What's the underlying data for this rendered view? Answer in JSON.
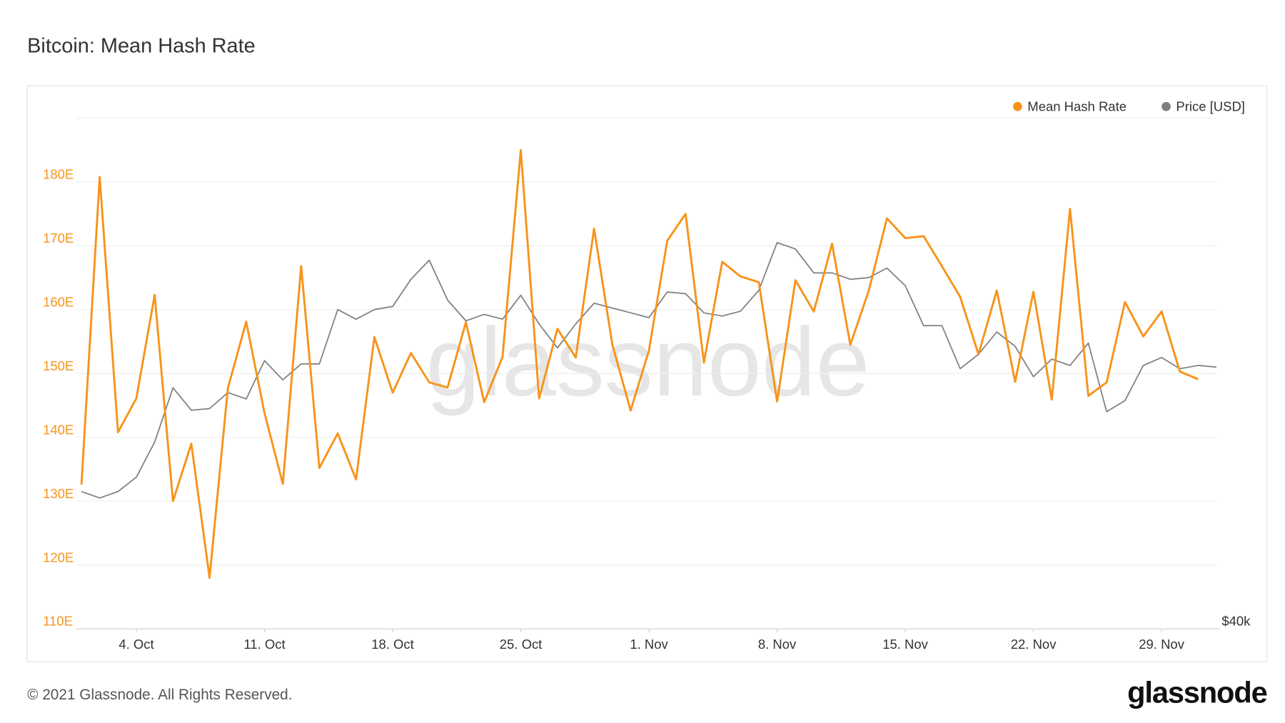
{
  "chart_data": {
    "type": "line",
    "title": "Bitcoin: Mean Hash Rate",
    "watermark": "glassnode",
    "copyright": "© 2021 Glassnode. All Rights Reserved.",
    "logo": "glassnode",
    "legend": "top-right",
    "grid": true,
    "x": [
      "10-01",
      "10-02",
      "10-03",
      "10-04",
      "10-05",
      "10-06",
      "10-07",
      "10-08",
      "10-09",
      "10-10",
      "10-11",
      "10-12",
      "10-13",
      "10-14",
      "10-15",
      "10-16",
      "10-17",
      "10-18",
      "10-19",
      "10-20",
      "10-21",
      "10-22",
      "10-23",
      "10-24",
      "10-25",
      "10-26",
      "10-27",
      "10-28",
      "10-29",
      "10-30",
      "10-31",
      "11-01",
      "11-02",
      "11-03",
      "11-04",
      "11-05",
      "11-06",
      "11-07",
      "11-08",
      "11-09",
      "11-10",
      "11-11",
      "11-12",
      "11-13",
      "11-14",
      "11-15",
      "11-16",
      "11-17",
      "11-18",
      "11-19",
      "11-20",
      "11-21",
      "11-22",
      "11-23",
      "11-24",
      "11-25",
      "11-26",
      "11-27",
      "11-28",
      "11-29",
      "11-30",
      "12-01",
      "12-02"
    ],
    "xticks": [
      {
        "value": "10-04",
        "label": "4. Oct"
      },
      {
        "value": "10-11",
        "label": "11. Oct"
      },
      {
        "value": "10-18",
        "label": "18. Oct"
      },
      {
        "value": "10-25",
        "label": "25. Oct"
      },
      {
        "value": "11-01",
        "label": "1. Nov"
      },
      {
        "value": "11-08",
        "label": "8. Nov"
      },
      {
        "value": "11-15",
        "label": "15. Nov"
      },
      {
        "value": "11-22",
        "label": "22. Nov"
      },
      {
        "value": "11-29",
        "label": "29. Nov"
      }
    ],
    "ylim": [
      110,
      190
    ],
    "yticks": [
      {
        "value": 110,
        "label": "110E"
      },
      {
        "value": 120,
        "label": "120E"
      },
      {
        "value": 130,
        "label": "130E"
      },
      {
        "value": 140,
        "label": "140E"
      },
      {
        "value": 150,
        "label": "150E"
      },
      {
        "value": 160,
        "label": "160E"
      },
      {
        "value": 170,
        "label": "170E"
      },
      {
        "value": 180,
        "label": "180E"
      }
    ],
    "y2lim": [
      40000,
      72000
    ],
    "y2ticks": [
      {
        "value": 40000,
        "label": "$40k"
      }
    ],
    "series": [
      {
        "name": "Mean Hash Rate",
        "color": "#f7931a",
        "values": [
          132.6,
          180.8,
          140.8,
          146.1,
          162.3,
          130,
          139,
          118,
          147.7,
          158.1,
          143.8,
          132.7,
          166.8,
          135.2,
          140.6,
          133.4,
          155.7,
          147,
          153.2,
          148.6,
          147.8,
          158,
          145.5,
          152.6,
          185,
          146.1,
          157,
          152.5,
          172.7,
          154.5,
          144.2,
          153.6,
          170.8,
          175,
          151.7,
          167.5,
          165.2,
          164.3,
          145.6,
          164.6,
          159.7,
          170.3,
          154.5,
          162.9,
          174.3,
          171.2,
          171.5,
          166.8,
          162,
          153,
          163,
          148.7,
          162.8,
          145.9,
          175.8,
          146.5,
          148.6,
          161.2,
          155.8,
          159.7,
          150.3,
          149.1,
          null
        ]
      },
      {
        "name": "Price [USD]",
        "color": "#7f7f7f",
        "axis": "y2",
        "values": [
          48600,
          48200,
          48600,
          49500,
          51700,
          55100,
          53700,
          53800,
          54800,
          54400,
          56800,
          55600,
          56600,
          56600,
          60000,
          59400,
          60000,
          60200,
          61900,
          63100,
          60600,
          59300,
          59700,
          59400,
          60900,
          59100,
          57600,
          59100,
          60400,
          60100,
          59800,
          59500,
          61100,
          61000,
          59800,
          59600,
          59900,
          61200,
          64200,
          63800,
          62300,
          62300,
          61900,
          62000,
          62600,
          61500,
          59000,
          59000,
          56300,
          57200,
          58600,
          57700,
          55800,
          56900,
          56500,
          57900,
          53600,
          54300,
          56500,
          57000,
          56300,
          56500,
          56400
        ]
      }
    ]
  }
}
